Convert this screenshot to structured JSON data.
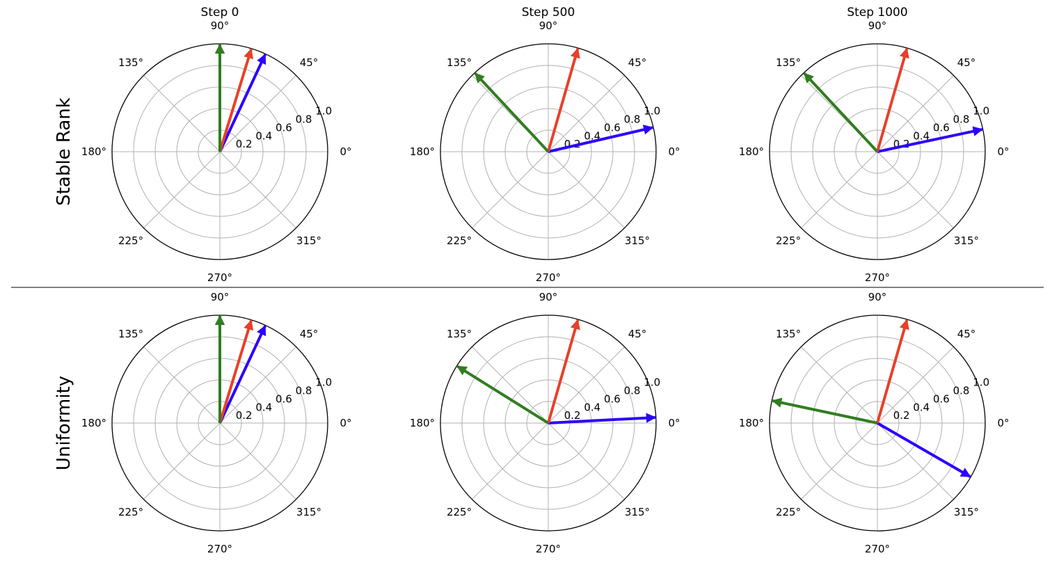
{
  "chart_data": {
    "type": "polar-quiver",
    "columns": [
      "Step 0",
      "Step 500",
      "Step 1000"
    ],
    "rows": [
      "Stable Rank",
      "Uniformity"
    ],
    "angle_ticks": [
      "0°",
      "45°",
      "90°",
      "135°",
      "180°",
      "225°",
      "270°",
      "315°"
    ],
    "radial_ticks": [
      "0.2",
      "0.4",
      "0.6",
      "0.8",
      "1.0"
    ],
    "radial_range": [
      0,
      1.0
    ],
    "colors": {
      "blue": "#2b00ff",
      "red": "#e8402a",
      "green": "#317d20",
      "grid": "#b0b0b0"
    },
    "panels": [
      {
        "row": "Stable Rank",
        "column": "Step 0",
        "vectors": [
          {
            "color": "blue",
            "angle_deg": 65,
            "magnitude": 1.0
          },
          {
            "color": "red",
            "angle_deg": 73,
            "magnitude": 1.0
          },
          {
            "color": "green",
            "angle_deg": 90,
            "magnitude": 1.0
          }
        ]
      },
      {
        "row": "Stable Rank",
        "column": "Step 500",
        "vectors": [
          {
            "color": "blue",
            "angle_deg": 13,
            "magnitude": 1.0
          },
          {
            "color": "red",
            "angle_deg": 74,
            "magnitude": 1.0
          },
          {
            "color": "green",
            "angle_deg": 133,
            "magnitude": 1.0
          }
        ]
      },
      {
        "row": "Stable Rank",
        "column": "Step 1000",
        "vectors": [
          {
            "color": "blue",
            "angle_deg": 12,
            "magnitude": 1.0
          },
          {
            "color": "red",
            "angle_deg": 74,
            "magnitude": 1.0
          },
          {
            "color": "green",
            "angle_deg": 133,
            "magnitude": 1.0
          }
        ]
      },
      {
        "row": "Uniformity",
        "column": "Step 0",
        "vectors": [
          {
            "color": "blue",
            "angle_deg": 65,
            "magnitude": 1.0
          },
          {
            "color": "red",
            "angle_deg": 73,
            "magnitude": 1.0
          },
          {
            "color": "green",
            "angle_deg": 90,
            "magnitude": 1.0
          }
        ]
      },
      {
        "row": "Uniformity",
        "column": "Step 500",
        "vectors": [
          {
            "color": "blue",
            "angle_deg": 3,
            "magnitude": 1.0
          },
          {
            "color": "red",
            "angle_deg": 74,
            "magnitude": 1.0
          },
          {
            "color": "green",
            "angle_deg": 148,
            "magnitude": 1.0
          }
        ]
      },
      {
        "row": "Uniformity",
        "column": "Step 1000",
        "vectors": [
          {
            "color": "blue",
            "angle_deg": -30,
            "magnitude": 1.0
          },
          {
            "color": "red",
            "angle_deg": 74,
            "magnitude": 1.0
          },
          {
            "color": "green",
            "angle_deg": 168,
            "magnitude": 1.0
          }
        ]
      }
    ]
  }
}
